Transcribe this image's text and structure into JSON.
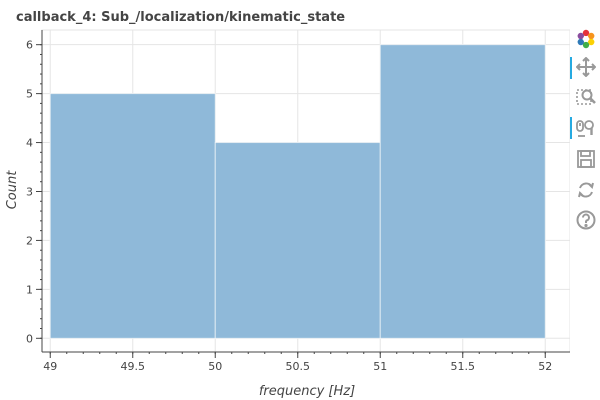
{
  "chart_data": {
    "type": "bar",
    "title": "callback_4: Sub_/localization/kinematic_state",
    "xlabel": "frequency [Hz]",
    "ylabel": "Count",
    "bins": [
      {
        "x0": 49,
        "x1": 50,
        "count": 5
      },
      {
        "x0": 50,
        "x1": 51,
        "count": 4
      },
      {
        "x0": 51,
        "x1": 52,
        "count": 6
      }
    ],
    "xlim": [
      48.95,
      52.15
    ],
    "ylim": [
      -0.28,
      6.3
    ],
    "x_ticks": [
      "49",
      "49.5",
      "50",
      "50.5",
      "51",
      "51.5",
      "52"
    ],
    "y_ticks": [
      "0",
      "1",
      "2",
      "3",
      "4",
      "5",
      "6"
    ],
    "bar_color": "#8fb9d9",
    "bar_edge_color": "#ffffff",
    "grid": true,
    "legend": "none"
  },
  "toolbar": {
    "logo_icon": "bokeh-logo-icon",
    "tools": [
      {
        "icon": "pan-icon",
        "active": true
      },
      {
        "icon": "box-zoom-icon",
        "active": false
      },
      {
        "icon": "wheel-zoom-icon",
        "active": true
      },
      {
        "icon": "save-icon",
        "active": false
      },
      {
        "icon": "reset-icon",
        "active": false
      },
      {
        "icon": "help-icon",
        "active": false
      }
    ]
  }
}
